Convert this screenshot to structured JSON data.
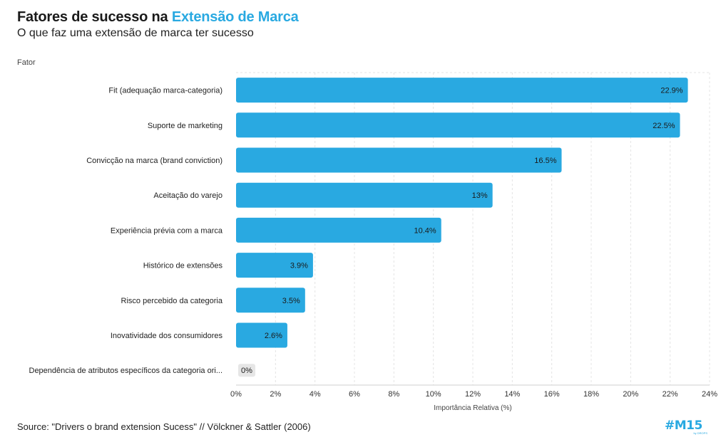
{
  "header": {
    "title_prefix": "Fatores de sucesso na ",
    "title_accent": "Extensão de Marca",
    "subtitle": "O que faz uma extensão de marca ter sucesso"
  },
  "chart_data": {
    "type": "bar",
    "orientation": "horizontal",
    "ylabel": "Fator",
    "xlabel": "Importância Relativa (%)",
    "categories": [
      "Fit (adequação marca-categoria)",
      "Suporte de marketing",
      "Convicção na marca (brand conviction)",
      "Aceitação do varejo",
      "Experiência prévia com a marca",
      "Histórico de extensões",
      "Risco percebido da categoria",
      "Inovatividade dos consumidores",
      "Dependência de atributos específicos da categoria ori..."
    ],
    "values": [
      22.9,
      22.5,
      16.5,
      13,
      10.4,
      3.9,
      3.5,
      2.6,
      0
    ],
    "data_labels": [
      "22.9%",
      "22.5%",
      "16.5%",
      "13%",
      "10.4%",
      "3.9%",
      "3.5%",
      "2.6%",
      "0%"
    ],
    "xlim": [
      0,
      24
    ],
    "xticks": [
      "0%",
      "2%",
      "4%",
      "6%",
      "8%",
      "10%",
      "12%",
      "14%",
      "16%",
      "18%",
      "20%",
      "22%",
      "24%"
    ],
    "grid": true,
    "bar_color": "#29a9e1",
    "zero_bar_color": "#e6e6e6"
  },
  "footer": {
    "source": "Source: \"Drivers o brand extension Sucess\" // Völckner & Sattler (2006)",
    "logo_text": "#M15",
    "logo_sub": "by DROPS"
  }
}
